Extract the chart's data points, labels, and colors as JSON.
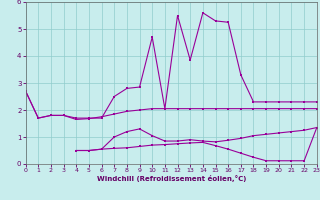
{
  "xlabel": "Windchill (Refroidissement éolien,°C)",
  "xlim": [
    0,
    23
  ],
  "ylim": [
    0,
    6
  ],
  "xticks": [
    0,
    1,
    2,
    3,
    4,
    5,
    6,
    7,
    8,
    9,
    10,
    11,
    12,
    13,
    14,
    15,
    16,
    17,
    18,
    19,
    20,
    21,
    22,
    23
  ],
  "yticks": [
    0,
    1,
    2,
    3,
    4,
    5,
    6
  ],
  "bg_color": "#c8eded",
  "line_color": "#990099",
  "line1_x": [
    0,
    1,
    2,
    3,
    4,
    5,
    6,
    7,
    8,
    9,
    10,
    11,
    12,
    13,
    14,
    15,
    16,
    17,
    18,
    19,
    20,
    21,
    22,
    23
  ],
  "line1_y": [
    2.7,
    1.7,
    1.8,
    1.8,
    1.7,
    1.7,
    1.7,
    2.5,
    2.8,
    2.85,
    4.7,
    2.05,
    5.5,
    3.85,
    5.6,
    5.3,
    5.25,
    3.3,
    2.3,
    2.3,
    2.3,
    2.3,
    2.3,
    2.3
  ],
  "line2_x": [
    0,
    1,
    2,
    3,
    4,
    5,
    6,
    7,
    8,
    9,
    10,
    11,
    12,
    13,
    14,
    15,
    16,
    17,
    18,
    19,
    20,
    21,
    22,
    23
  ],
  "line2_y": [
    2.7,
    1.7,
    1.8,
    1.8,
    1.65,
    1.68,
    1.75,
    1.85,
    1.95,
    2.0,
    2.05,
    2.05,
    2.05,
    2.05,
    2.05,
    2.05,
    2.05,
    2.05,
    2.05,
    2.05,
    2.05,
    2.05,
    2.05,
    2.05
  ],
  "line3_x": [
    4,
    5,
    6,
    7,
    8,
    9,
    10,
    11,
    12,
    13,
    14,
    15,
    16,
    17,
    18,
    19,
    20,
    21,
    22,
    23
  ],
  "line3_y": [
    0.5,
    0.5,
    0.55,
    1.0,
    1.2,
    1.3,
    1.05,
    0.85,
    0.85,
    0.9,
    0.85,
    0.82,
    0.88,
    0.95,
    1.05,
    1.1,
    1.15,
    1.2,
    1.25,
    1.35
  ],
  "line4_x": [
    4,
    5,
    6,
    7,
    8,
    9,
    10,
    11,
    12,
    13,
    14,
    15,
    16,
    17,
    18,
    19,
    20,
    21,
    22,
    23
  ],
  "line4_y": [
    0.5,
    0.5,
    0.55,
    0.58,
    0.6,
    0.65,
    0.7,
    0.72,
    0.75,
    0.78,
    0.8,
    0.68,
    0.55,
    0.4,
    0.25,
    0.12,
    0.12,
    0.12,
    0.12,
    1.35
  ]
}
